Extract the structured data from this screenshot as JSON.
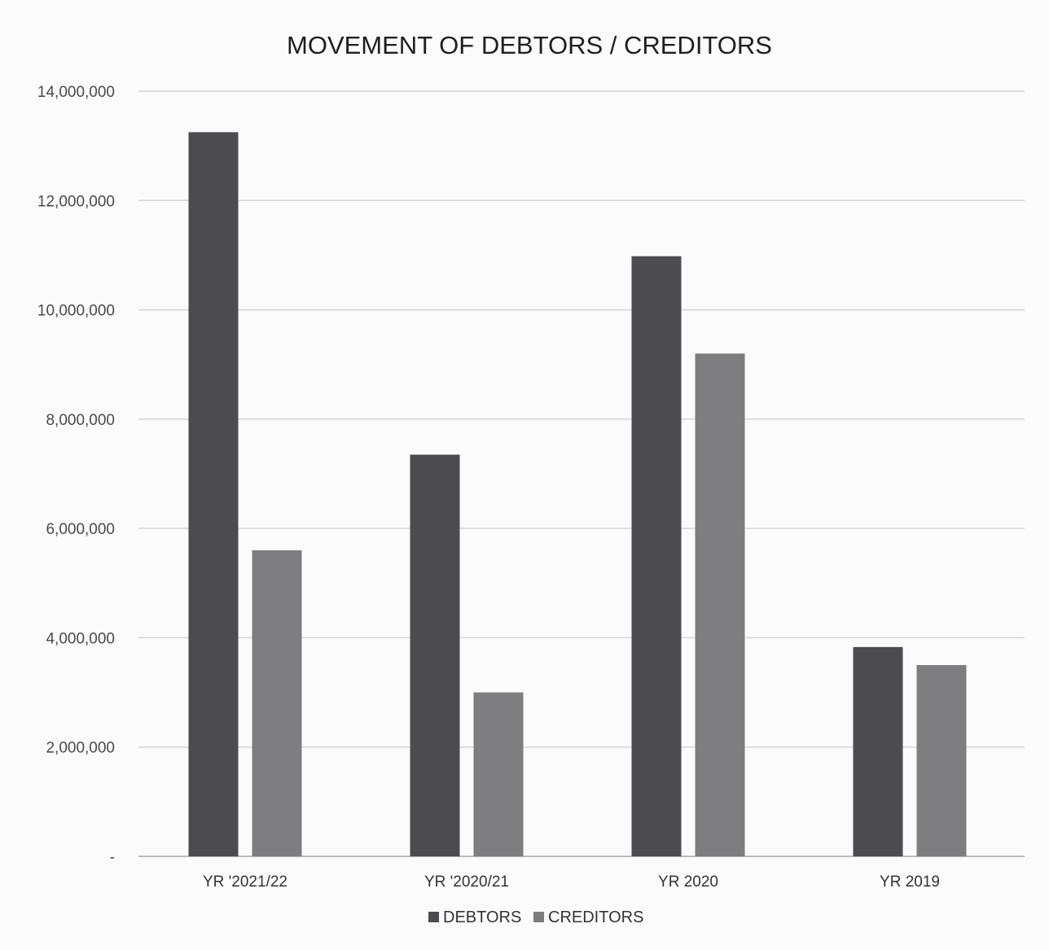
{
  "chart_data": {
    "type": "bar",
    "title": "MOVEMENT  OF DEBTORS / CREDITORS",
    "xlabel": "",
    "ylabel": "",
    "categories": [
      "YR '2021/22",
      "YR '2020/21",
      "YR 2020",
      "YR 2019"
    ],
    "series": [
      {
        "name": "DEBTORS",
        "values": [
          13250000,
          7350000,
          10980000,
          3830000
        ],
        "color": "#4b4b50"
      },
      {
        "name": "CREDITORS",
        "values": [
          5600000,
          3000000,
          9200000,
          3500000
        ],
        "color": "#7e7e80"
      }
    ],
    "ylim": [
      0,
      14000000
    ],
    "y_ticks": [
      {
        "value": 0,
        "label": "-"
      },
      {
        "value": 2000000,
        "label": "2,000,000"
      },
      {
        "value": 4000000,
        "label": "4,000,000"
      },
      {
        "value": 6000000,
        "label": "6,000,000"
      },
      {
        "value": 8000000,
        "label": "8,000,000"
      },
      {
        "value": 10000000,
        "label": "10,000,000"
      },
      {
        "value": 12000000,
        "label": "12,000,000"
      },
      {
        "value": 14000000,
        "label": "14,000,000"
      }
    ],
    "grid": true,
    "legend_position": "bottom"
  }
}
